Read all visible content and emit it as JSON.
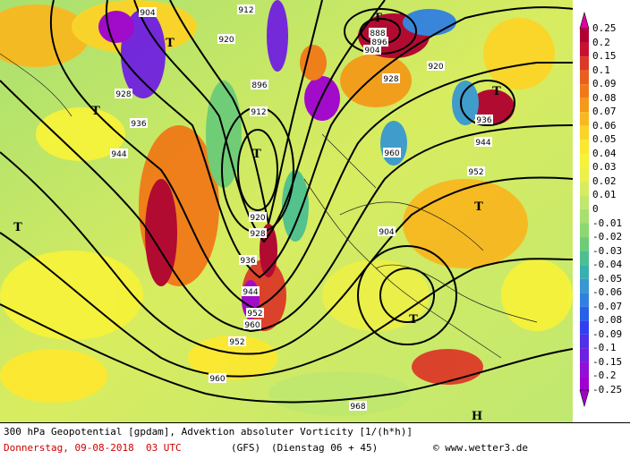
{
  "footer": {
    "title": "300 hPa Geopotential [gpdam], Advektion absoluter Vorticity [1/(h*h)]",
    "date": "Donnerstag, 09-08-2018  03 UTC",
    "model": "(GFS)",
    "run": "(Dienstag 06 + 45)",
    "credit": "© www.wetter3.de"
  },
  "legend": {
    "values": [
      "0.25",
      "0.2",
      "0.15",
      "0.1",
      "0.09",
      "0.08",
      "0.07",
      "0.06",
      "0.05",
      "0.04",
      "0.03",
      "0.02",
      "0.01",
      "0",
      "-0.01",
      "-0.02",
      "-0.03",
      "-0.04",
      "-0.05",
      "-0.06",
      "-0.07",
      "-0.08",
      "-0.09",
      "-0.1",
      "-0.15",
      "-0.2",
      "-0.25"
    ],
    "colors": [
      "#e000a0",
      "#b00030",
      "#c81030",
      "#dc3a28",
      "#e86020",
      "#f07a18",
      "#f49a1a",
      "#f8b820",
      "#fcd428",
      "#fce830",
      "#f6f23a",
      "#ecf048",
      "#d8ec60",
      "#c0e870",
      "#a8e070",
      "#8cd870",
      "#6ccc78",
      "#4cc090",
      "#38b0b0",
      "#3898d0",
      "#3080e0",
      "#2860e8",
      "#3040f0",
      "#5030e8",
      "#7020e0",
      "#9010d8",
      "#a000d0"
    ]
  },
  "contour_labels": [
    "904",
    "912",
    "920",
    "928",
    "936",
    "944",
    "952",
    "960",
    "968",
    "888",
    "896",
    "904",
    "920",
    "928",
    "936",
    "944",
    "952",
    "960",
    "904",
    "896",
    "912",
    "920",
    "928",
    "936",
    "944",
    "952",
    "960"
  ],
  "pressure_centers": [
    "T",
    "T",
    "T",
    "T",
    "T",
    "T",
    "T",
    "T",
    "H"
  ]
}
